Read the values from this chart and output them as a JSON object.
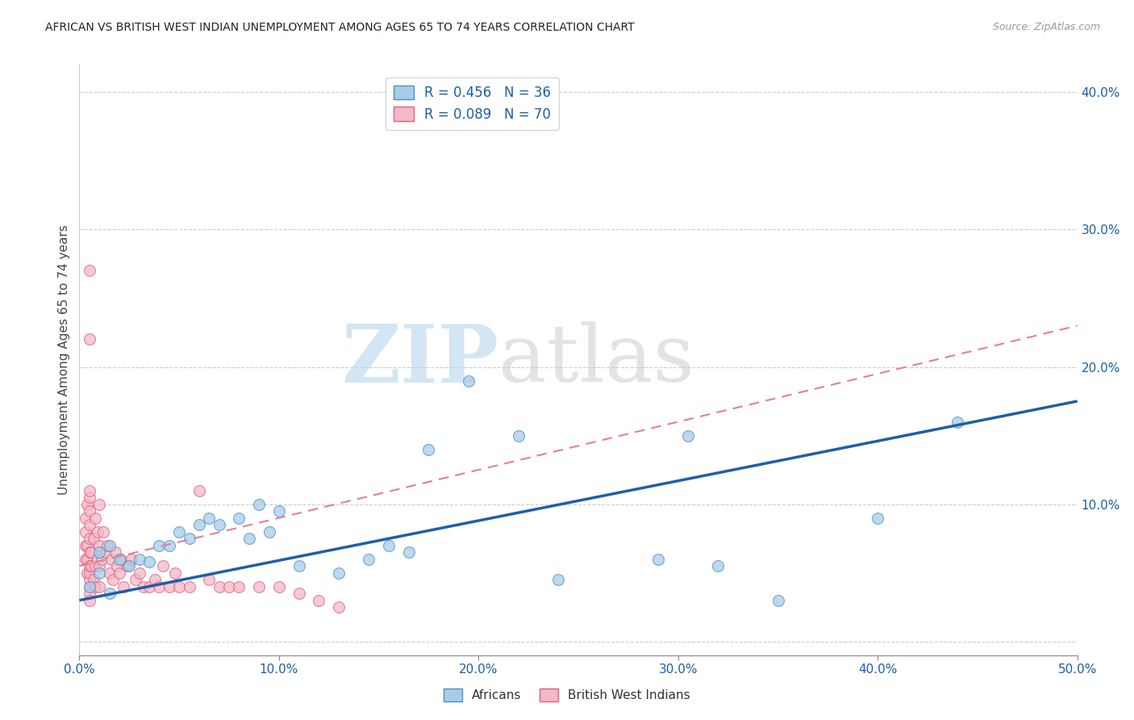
{
  "title": "AFRICAN VS BRITISH WEST INDIAN UNEMPLOYMENT AMONG AGES 65 TO 74 YEARS CORRELATION CHART",
  "source": "Source: ZipAtlas.com",
  "ylabel": "Unemployment Among Ages 65 to 74 years",
  "xlim": [
    0.0,
    0.5
  ],
  "ylim": [
    -0.01,
    0.42
  ],
  "xticks": [
    0.0,
    0.1,
    0.2,
    0.3,
    0.4,
    0.5
  ],
  "yticks": [
    0.0,
    0.1,
    0.2,
    0.3,
    0.4
  ],
  "xticklabels": [
    "0.0%",
    "10.0%",
    "20.0%",
    "30.0%",
    "40.0%",
    "50.0%"
  ],
  "yticklabels_right": [
    "",
    "10.0%",
    "20.0%",
    "30.0%",
    "40.0%"
  ],
  "legend_r_african": "R = 0.456",
  "legend_n_african": "N = 36",
  "legend_r_bwi": "R = 0.089",
  "legend_n_bwi": "N = 70",
  "watermark_zip": "ZIP",
  "watermark_atlas": "atlas",
  "african_color": "#a8cce8",
  "bwi_color": "#f4b8c8",
  "african_edge_color": "#4a90c4",
  "bwi_edge_color": "#e06080",
  "african_line_color": "#1f5fa6",
  "bwi_line_color": "#e08098",
  "african_x": [
    0.005,
    0.01,
    0.01,
    0.015,
    0.015,
    0.02,
    0.025,
    0.03,
    0.035,
    0.04,
    0.045,
    0.05,
    0.055,
    0.06,
    0.065,
    0.07,
    0.08,
    0.085,
    0.09,
    0.095,
    0.1,
    0.11,
    0.13,
    0.145,
    0.155,
    0.165,
    0.175,
    0.195,
    0.22,
    0.24,
    0.29,
    0.305,
    0.32,
    0.35,
    0.4,
    0.44
  ],
  "african_y": [
    0.04,
    0.05,
    0.065,
    0.035,
    0.07,
    0.06,
    0.055,
    0.06,
    0.058,
    0.07,
    0.07,
    0.08,
    0.075,
    0.085,
    0.09,
    0.085,
    0.09,
    0.075,
    0.1,
    0.08,
    0.095,
    0.055,
    0.05,
    0.06,
    0.07,
    0.065,
    0.14,
    0.19,
    0.15,
    0.045,
    0.06,
    0.15,
    0.055,
    0.03,
    0.09,
    0.16
  ],
  "bwi_x": [
    0.003,
    0.003,
    0.003,
    0.003,
    0.004,
    0.004,
    0.004,
    0.004,
    0.005,
    0.005,
    0.005,
    0.005,
    0.005,
    0.005,
    0.005,
    0.005,
    0.005,
    0.005,
    0.005,
    0.005,
    0.006,
    0.006,
    0.007,
    0.007,
    0.008,
    0.008,
    0.008,
    0.009,
    0.009,
    0.01,
    0.01,
    0.01,
    0.01,
    0.011,
    0.012,
    0.013,
    0.014,
    0.015,
    0.016,
    0.017,
    0.018,
    0.019,
    0.02,
    0.021,
    0.022,
    0.024,
    0.026,
    0.028,
    0.03,
    0.032,
    0.035,
    0.038,
    0.04,
    0.042,
    0.045,
    0.048,
    0.05,
    0.055,
    0.06,
    0.065,
    0.07,
    0.075,
    0.08,
    0.09,
    0.1,
    0.11,
    0.12,
    0.13,
    0.005,
    0.005
  ],
  "bwi_y": [
    0.06,
    0.07,
    0.08,
    0.09,
    0.05,
    0.06,
    0.07,
    0.1,
    0.04,
    0.045,
    0.05,
    0.055,
    0.065,
    0.075,
    0.085,
    0.095,
    0.105,
    0.11,
    0.035,
    0.03,
    0.055,
    0.065,
    0.045,
    0.075,
    0.04,
    0.055,
    0.09,
    0.06,
    0.08,
    0.04,
    0.055,
    0.07,
    0.1,
    0.06,
    0.08,
    0.065,
    0.07,
    0.05,
    0.06,
    0.045,
    0.065,
    0.055,
    0.05,
    0.06,
    0.04,
    0.055,
    0.06,
    0.045,
    0.05,
    0.04,
    0.04,
    0.045,
    0.04,
    0.055,
    0.04,
    0.05,
    0.04,
    0.04,
    0.11,
    0.045,
    0.04,
    0.04,
    0.04,
    0.04,
    0.04,
    0.035,
    0.03,
    0.025,
    0.27,
    0.22
  ],
  "african_line_x": [
    0.0,
    0.5
  ],
  "african_line_y": [
    0.03,
    0.175
  ],
  "bwi_line_x": [
    0.0,
    0.5
  ],
  "bwi_line_y": [
    0.055,
    0.23
  ]
}
